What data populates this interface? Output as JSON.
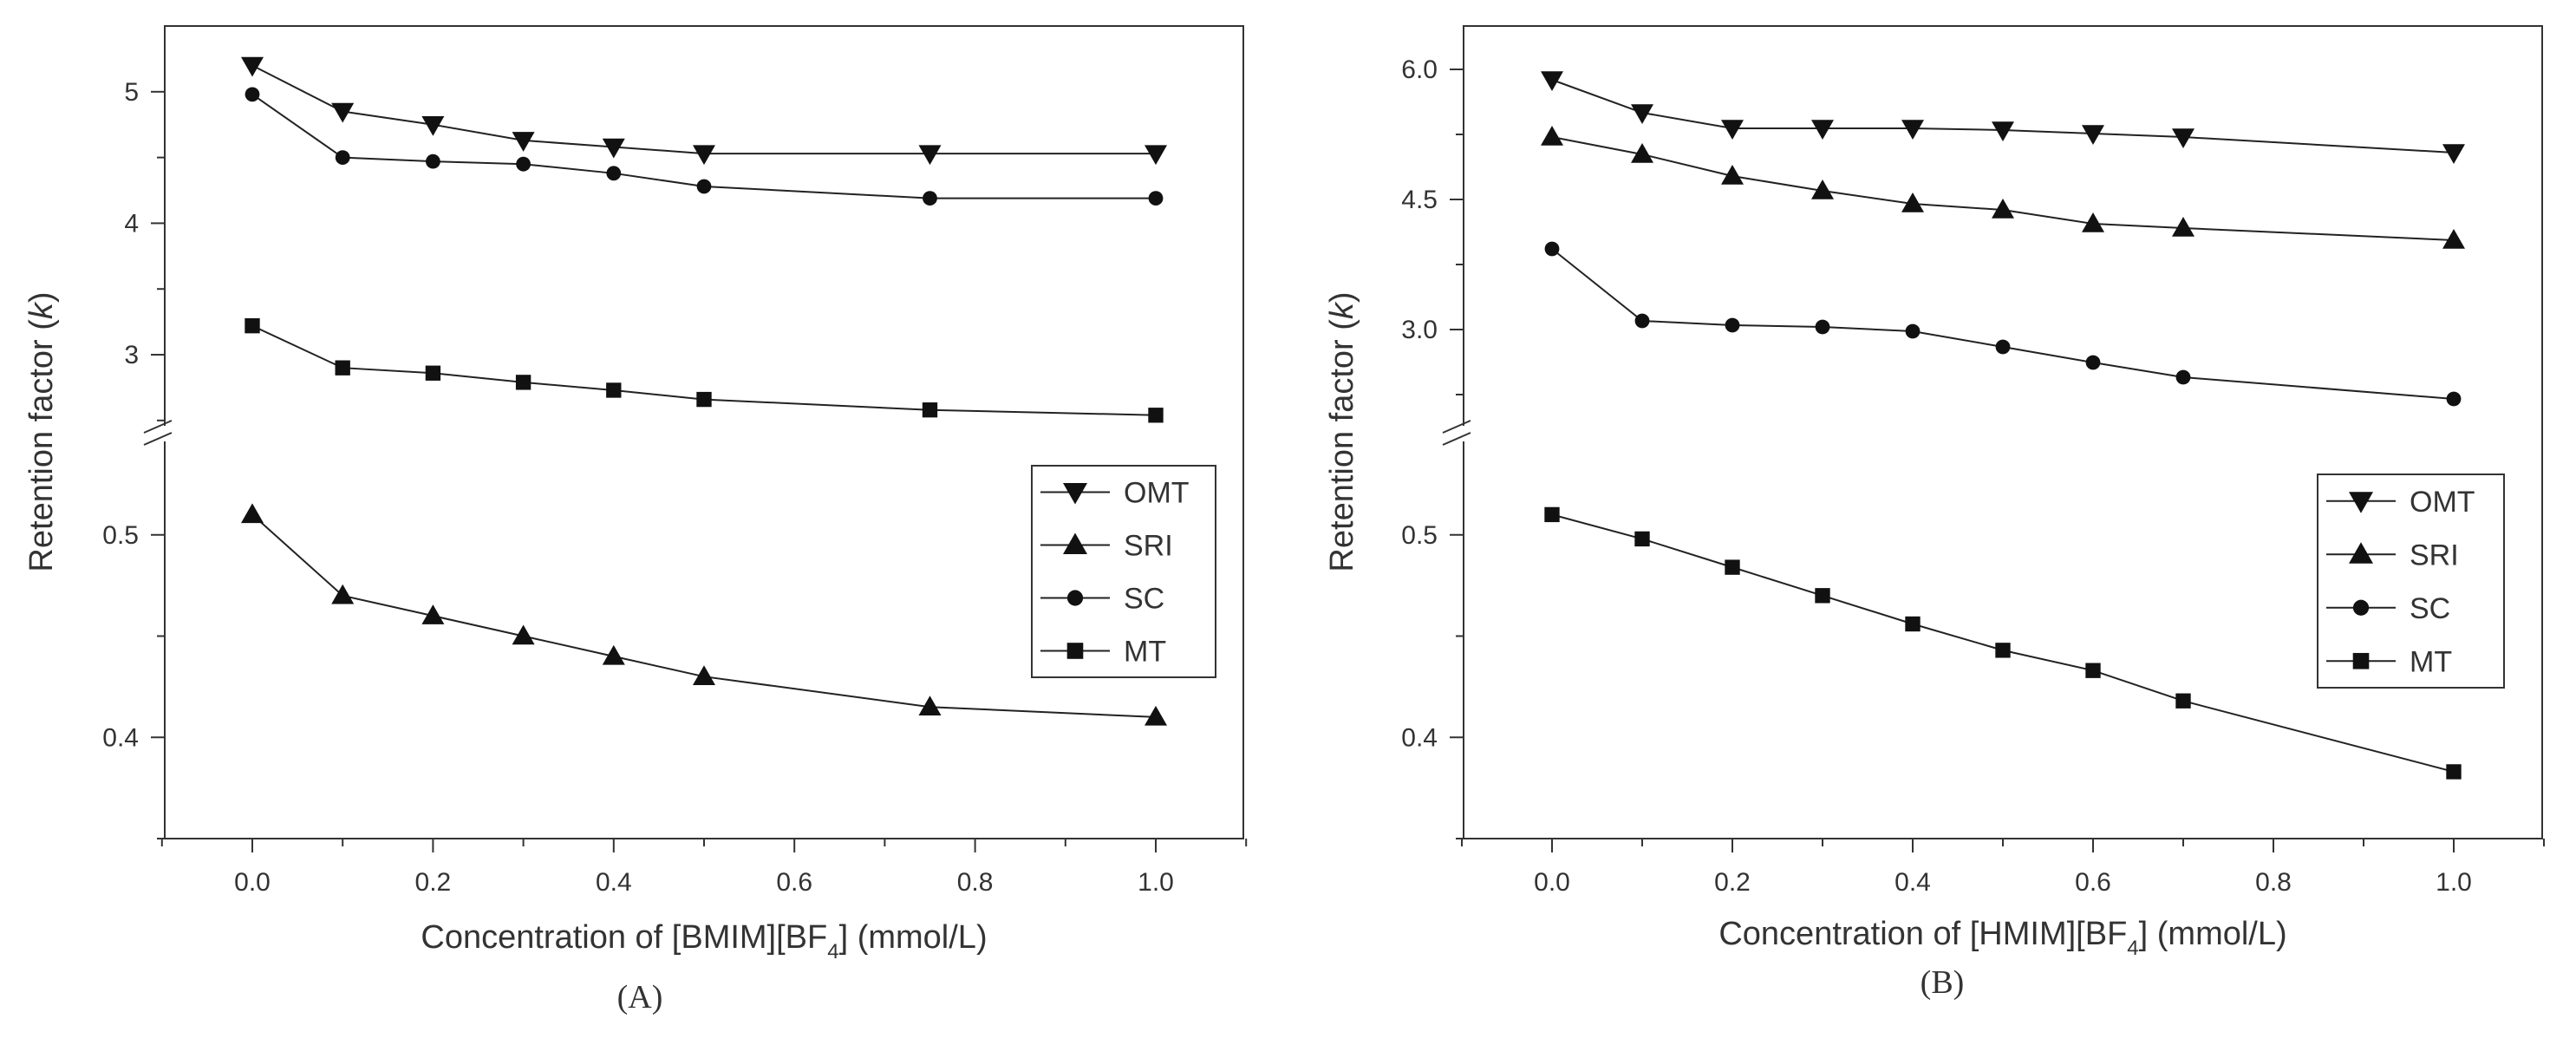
{
  "chart_data": [
    {
      "type": "line",
      "panel_label": "(A)",
      "xlabel_parts": [
        "Concentration of [BMIM][BF",
        "4",
        "] (mmol/L)"
      ],
      "ylabel_parts": [
        "Retention factor (",
        "k",
        ")"
      ],
      "xlim": [
        -0.1,
        1.1
      ],
      "x_ticks": [
        "0.0",
        "0.2",
        "0.4",
        "0.6",
        "0.8",
        "1.0"
      ],
      "y_break": true,
      "upper_ylim": [
        2.4,
        5.5
      ],
      "upper_ticks": [
        "3",
        "4",
        "5"
      ],
      "lower_ylim": [
        0.35,
        0.55
      ],
      "lower_ticks": [
        "0.4",
        "0.5"
      ],
      "legend_position": "right",
      "series": [
        {
          "name": "OMT",
          "marker": "triangle-down",
          "segment": "upper",
          "x": [
            0,
            0.1,
            0.2,
            0.3,
            0.4,
            0.5,
            0.75,
            1.0
          ],
          "values": [
            5.2,
            4.85,
            4.75,
            4.63,
            4.58,
            4.53,
            4.53,
            4.53
          ]
        },
        {
          "name": "SRI",
          "marker": "triangle-up",
          "segment": "lower",
          "x": [
            0,
            0.1,
            0.2,
            0.3,
            0.4,
            0.5,
            0.75,
            1.0
          ],
          "values": [
            0.51,
            0.47,
            0.46,
            0.45,
            0.44,
            0.43,
            0.415,
            0.41
          ]
        },
        {
          "name": "SC",
          "marker": "circle",
          "segment": "upper",
          "x": [
            0,
            0.1,
            0.2,
            0.3,
            0.4,
            0.5,
            0.75,
            1.0
          ],
          "values": [
            4.98,
            4.5,
            4.47,
            4.45,
            4.38,
            4.28,
            4.19,
            4.19
          ]
        },
        {
          "name": "MT",
          "marker": "square",
          "segment": "upper",
          "x": [
            0,
            0.1,
            0.2,
            0.3,
            0.4,
            0.5,
            0.75,
            1.0
          ],
          "values": [
            3.22,
            2.9,
            2.86,
            2.79,
            2.73,
            2.66,
            2.58,
            2.54
          ]
        }
      ]
    },
    {
      "type": "line",
      "panel_label": "(B)",
      "xlabel_parts": [
        "Concentration of [HMIM][BF",
        "4",
        "] (mmol/L)"
      ],
      "ylabel_parts": [
        "Retention factor (",
        "k",
        ")"
      ],
      "xlim": [
        -0.1,
        1.1
      ],
      "x_ticks": [
        "0.0",
        "0.2",
        "0.4",
        "0.6",
        "0.8",
        "1.0"
      ],
      "y_break": true,
      "upper_ylim": [
        1.8,
        6.5
      ],
      "upper_ticks": [
        "3.0",
        "4.5",
        "6.0"
      ],
      "lower_ylim": [
        0.35,
        0.55
      ],
      "lower_ticks": [
        "0.4",
        "0.5"
      ],
      "legend_position": "right",
      "series": [
        {
          "name": "OMT",
          "marker": "triangle-down",
          "segment": "upper",
          "x": [
            0,
            0.1,
            0.2,
            0.3,
            0.4,
            0.5,
            0.6,
            0.7,
            1.0
          ],
          "values": [
            5.88,
            5.5,
            5.32,
            5.32,
            5.32,
            5.3,
            5.26,
            5.22,
            5.04
          ]
        },
        {
          "name": "SRI",
          "marker": "triangle-up",
          "segment": "upper",
          "x": [
            0,
            0.1,
            0.2,
            0.3,
            0.4,
            0.5,
            0.6,
            0.7,
            1.0
          ],
          "values": [
            5.22,
            5.02,
            4.77,
            4.6,
            4.45,
            4.38,
            4.22,
            4.17,
            4.03
          ]
        },
        {
          "name": "SC",
          "marker": "circle",
          "segment": "upper",
          "x": [
            0,
            0.1,
            0.2,
            0.3,
            0.4,
            0.5,
            0.6,
            0.7,
            1.0
          ],
          "values": [
            3.93,
            3.1,
            3.05,
            3.03,
            2.98,
            2.8,
            2.62,
            2.45,
            2.2
          ]
        },
        {
          "name": "MT",
          "marker": "square",
          "segment": "lower",
          "x": [
            0,
            0.1,
            0.2,
            0.3,
            0.4,
            0.5,
            0.6,
            0.7,
            1.0
          ],
          "values": [
            0.51,
            0.498,
            0.484,
            0.47,
            0.456,
            0.443,
            0.433,
            0.418,
            0.383
          ]
        }
      ]
    }
  ]
}
